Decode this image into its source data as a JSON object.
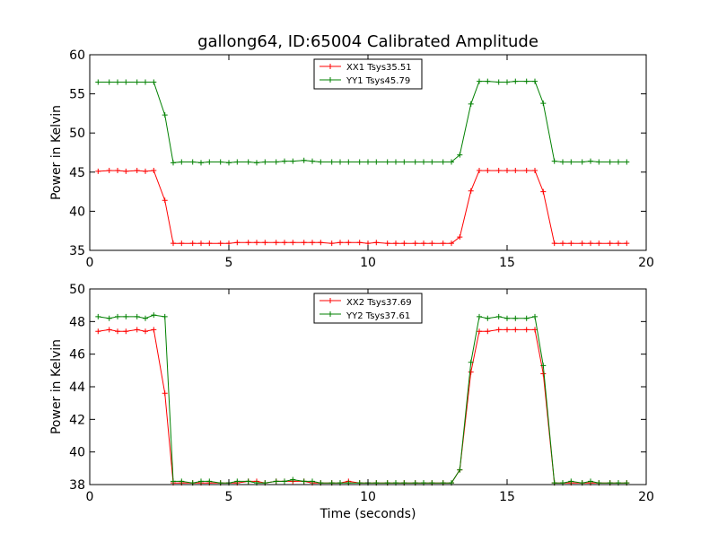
{
  "chart_data": [
    {
      "type": "line",
      "title": "gallong64, ID:65004 Calibrated Amplitude",
      "xlabel": "",
      "ylabel": "Power in Kelvin",
      "xlim": [
        0,
        20
      ],
      "ylim": [
        35,
        60
      ],
      "xticks": [
        "0",
        "5",
        "10",
        "15",
        "20"
      ],
      "yticks": [
        "35",
        "40",
        "45",
        "50",
        "55",
        "60"
      ],
      "legend_position": "top-center",
      "x": [
        0.3,
        0.7,
        1.0,
        1.3,
        1.7,
        2.0,
        2.3,
        2.7,
        3.0,
        3.3,
        3.7,
        4.0,
        4.3,
        4.7,
        5.0,
        5.3,
        5.7,
        6.0,
        6.3,
        6.7,
        7.0,
        7.3,
        7.7,
        8.0,
        8.3,
        8.7,
        9.0,
        9.3,
        9.7,
        10.0,
        10.3,
        10.7,
        11.0,
        11.3,
        11.7,
        12.0,
        12.3,
        12.7,
        13.0,
        13.3,
        13.7,
        14.0,
        14.3,
        14.7,
        15.0,
        15.3,
        15.7,
        16.0,
        16.3,
        16.7,
        17.0,
        17.3,
        17.7,
        18.0,
        18.3,
        18.7,
        19.0,
        19.3
      ],
      "series": [
        {
          "name": "XX1 Tsys35.51",
          "color": "#ff0000",
          "values": [
            45.1,
            45.2,
            45.2,
            45.1,
            45.2,
            45.1,
            45.2,
            41.4,
            35.9,
            35.9,
            35.9,
            35.9,
            35.9,
            35.9,
            35.9,
            36.0,
            36.0,
            36.0,
            36.0,
            36.0,
            36.0,
            36.0,
            36.0,
            36.0,
            36.0,
            35.9,
            36.0,
            36.0,
            36.0,
            35.9,
            36.0,
            35.9,
            35.9,
            35.9,
            35.9,
            35.9,
            35.9,
            35.9,
            35.9,
            36.7,
            42.6,
            45.2,
            45.2,
            45.2,
            45.2,
            45.2,
            45.2,
            45.2,
            42.5,
            35.9,
            35.9,
            35.9,
            35.9,
            35.9,
            35.9,
            35.9,
            35.9,
            35.9
          ]
        },
        {
          "name": "YY1 Tsys45.79",
          "color": "#008000",
          "values": [
            56.5,
            56.5,
            56.5,
            56.5,
            56.5,
            56.5,
            56.5,
            52.3,
            46.2,
            46.3,
            46.3,
            46.2,
            46.3,
            46.3,
            46.2,
            46.3,
            46.3,
            46.2,
            46.3,
            46.3,
            46.4,
            46.4,
            46.5,
            46.4,
            46.3,
            46.3,
            46.3,
            46.3,
            46.3,
            46.3,
            46.3,
            46.3,
            46.3,
            46.3,
            46.3,
            46.3,
            46.3,
            46.3,
            46.3,
            47.2,
            53.7,
            56.6,
            56.6,
            56.5,
            56.5,
            56.6,
            56.6,
            56.6,
            53.8,
            46.4,
            46.3,
            46.3,
            46.3,
            46.4,
            46.3,
            46.3,
            46.3,
            46.3
          ]
        }
      ]
    },
    {
      "type": "line",
      "title": "",
      "xlabel": "Time (seconds)",
      "ylabel": "Power in Kelvin",
      "xlim": [
        0,
        20
      ],
      "ylim": [
        38,
        50
      ],
      "xticks": [
        "0",
        "5",
        "10",
        "15",
        "20"
      ],
      "yticks": [
        "38",
        "40",
        "42",
        "44",
        "46",
        "48",
        "50"
      ],
      "legend_position": "top-center",
      "x": [
        0.3,
        0.7,
        1.0,
        1.3,
        1.7,
        2.0,
        2.3,
        2.7,
        3.0,
        3.3,
        3.7,
        4.0,
        4.3,
        4.7,
        5.0,
        5.3,
        5.7,
        6.0,
        6.3,
        6.7,
        7.0,
        7.3,
        7.7,
        8.0,
        8.3,
        8.7,
        9.0,
        9.3,
        9.7,
        10.0,
        10.3,
        10.7,
        11.0,
        11.3,
        11.7,
        12.0,
        12.3,
        12.7,
        13.0,
        13.3,
        13.7,
        14.0,
        14.3,
        14.7,
        15.0,
        15.3,
        15.7,
        16.0,
        16.3,
        16.7,
        17.0,
        17.3,
        17.7,
        18.0,
        18.3,
        18.7,
        19.0,
        19.3
      ],
      "series": [
        {
          "name": "XX2 Tsys37.69",
          "color": "#ff0000",
          "values": [
            47.4,
            47.5,
            47.4,
            47.4,
            47.5,
            47.4,
            47.5,
            43.6,
            38.1,
            38.1,
            38.1,
            38.1,
            38.1,
            38.1,
            38.1,
            38.1,
            38.2,
            38.2,
            38.1,
            38.2,
            38.2,
            38.2,
            38.2,
            38.1,
            38.1,
            38.1,
            38.1,
            38.2,
            38.1,
            38.1,
            38.1,
            38.1,
            38.1,
            38.1,
            38.1,
            38.1,
            38.1,
            38.1,
            38.1,
            38.9,
            44.9,
            47.4,
            47.4,
            47.5,
            47.5,
            47.5,
            47.5,
            47.5,
            44.8,
            38.1,
            38.1,
            38.1,
            38.1,
            38.1,
            38.1,
            38.1,
            38.1,
            38.1
          ]
        },
        {
          "name": "YY2 Tsys37.61",
          "color": "#008000",
          "values": [
            48.3,
            48.2,
            48.3,
            48.3,
            48.3,
            48.2,
            48.4,
            48.3,
            38.2,
            38.2,
            38.1,
            38.2,
            38.2,
            38.1,
            38.1,
            38.2,
            38.2,
            38.1,
            38.1,
            38.2,
            38.2,
            38.3,
            38.2,
            38.2,
            38.1,
            38.1,
            38.1,
            38.1,
            38.1,
            38.1,
            38.1,
            38.1,
            38.1,
            38.1,
            38.1,
            38.1,
            38.1,
            38.1,
            38.1,
            38.9,
            45.5,
            48.3,
            48.2,
            48.3,
            48.2,
            48.2,
            48.2,
            48.3,
            45.3,
            38.1,
            38.1,
            38.2,
            38.1,
            38.2,
            38.1,
            38.1,
            38.1,
            38.1
          ]
        }
      ]
    }
  ]
}
